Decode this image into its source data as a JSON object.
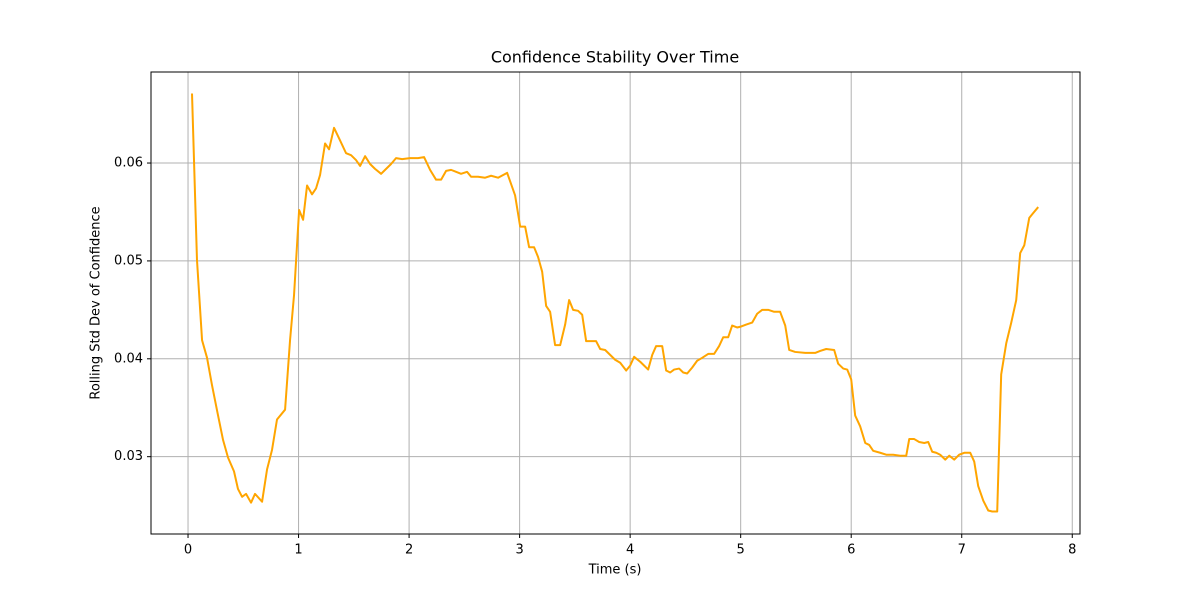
{
  "chart_data": {
    "type": "line",
    "title": "Confidence Stability Over Time",
    "xlabel": "Time (s)",
    "ylabel": "Rolling Std Dev of Confidence",
    "color": "#ffa500",
    "grid": true,
    "xlim": [
      -0.335,
      8.07
    ],
    "ylim": [
      0.0221,
      0.0693
    ],
    "xticks": [
      0,
      1,
      2,
      3,
      4,
      5,
      6,
      7,
      8
    ],
    "yticks": [
      0.03,
      0.04,
      0.05,
      0.06
    ],
    "x": [
      0.036,
      0.081,
      0.127,
      0.172,
      0.217,
      0.27,
      0.317,
      0.362,
      0.416,
      0.452,
      0.489,
      0.525,
      0.57,
      0.606,
      0.67,
      0.715,
      0.76,
      0.805,
      0.878,
      0.923,
      0.959,
      1.005,
      1.041,
      1.077,
      1.122,
      1.158,
      1.195,
      1.24,
      1.276,
      1.321,
      1.376,
      1.43,
      1.475,
      1.52,
      1.557,
      1.602,
      1.647,
      1.692,
      1.747,
      1.792,
      1.837,
      1.882,
      1.937,
      2.009,
      2.081,
      2.136,
      2.19,
      2.244,
      2.29,
      2.335,
      2.38,
      2.425,
      2.47,
      2.525,
      2.561,
      2.624,
      2.688,
      2.742,
      2.805,
      2.887,
      2.959,
      3.005,
      3.05,
      3.086,
      3.131,
      3.167,
      3.204,
      3.24,
      3.276,
      3.321,
      3.367,
      3.412,
      3.448,
      3.484,
      3.529,
      3.566,
      3.602,
      3.647,
      3.692,
      3.729,
      3.774,
      3.819,
      3.864,
      3.91,
      3.964,
      4.0,
      4.036,
      4.091,
      4.127,
      4.163,
      4.2,
      4.235,
      4.29,
      4.326,
      4.362,
      4.398,
      4.443,
      4.48,
      4.516,
      4.561,
      4.606,
      4.652,
      4.706,
      4.76,
      4.805,
      4.842,
      4.887,
      4.923,
      4.968,
      5.005,
      5.05,
      5.104,
      5.149,
      5.195,
      5.249,
      5.303,
      5.357,
      5.403,
      5.439,
      5.493,
      5.584,
      5.674,
      5.719,
      5.774,
      5.846,
      5.882,
      5.928,
      5.964,
      6.0,
      6.036,
      6.081,
      6.127,
      6.163,
      6.199,
      6.262,
      6.317,
      6.38,
      6.443,
      6.498,
      6.525,
      6.57,
      6.615,
      6.661,
      6.697,
      6.733,
      6.769,
      6.805,
      6.851,
      6.887,
      6.932,
      6.977,
      7.023,
      7.077,
      7.113,
      7.149,
      7.195,
      7.24,
      7.276,
      7.321,
      7.357,
      7.403,
      7.448,
      7.493,
      7.529,
      7.566,
      7.611,
      7.647,
      7.692
    ],
    "values": [
      0.0671,
      0.0501,
      0.0419,
      0.0401,
      0.0373,
      0.0343,
      0.0317,
      0.0299,
      0.0285,
      0.0267,
      0.0259,
      0.0262,
      0.0253,
      0.0262,
      0.0254,
      0.0287,
      0.0307,
      0.0338,
      0.0348,
      0.0419,
      0.0465,
      0.0552,
      0.0542,
      0.0577,
      0.0568,
      0.0574,
      0.0588,
      0.062,
      0.0614,
      0.0636,
      0.0623,
      0.061,
      0.0608,
      0.0603,
      0.0597,
      0.0607,
      0.0599,
      0.0594,
      0.0589,
      0.0594,
      0.0599,
      0.0605,
      0.0604,
      0.0605,
      0.0605,
      0.0606,
      0.0593,
      0.0583,
      0.0583,
      0.0592,
      0.0593,
      0.0591,
      0.0589,
      0.0591,
      0.0586,
      0.0586,
      0.0585,
      0.0587,
      0.0585,
      0.059,
      0.0567,
      0.0535,
      0.0535,
      0.0514,
      0.0514,
      0.0504,
      0.0489,
      0.0454,
      0.0448,
      0.0414,
      0.0414,
      0.0435,
      0.046,
      0.045,
      0.0449,
      0.0445,
      0.0418,
      0.0418,
      0.0418,
      0.041,
      0.0409,
      0.0404,
      0.0399,
      0.0396,
      0.0388,
      0.0393,
      0.0402,
      0.0397,
      0.0393,
      0.0389,
      0.0404,
      0.0413,
      0.0413,
      0.0388,
      0.0386,
      0.0389,
      0.039,
      0.0386,
      0.0385,
      0.0391,
      0.0398,
      0.0401,
      0.0405,
      0.0405,
      0.0413,
      0.0422,
      0.0422,
      0.0434,
      0.0432,
      0.0433,
      0.0435,
      0.0437,
      0.0446,
      0.045,
      0.045,
      0.0448,
      0.0448,
      0.0434,
      0.0409,
      0.0407,
      0.0406,
      0.0406,
      0.0408,
      0.041,
      0.0409,
      0.0395,
      0.039,
      0.0389,
      0.0379,
      0.0342,
      0.0331,
      0.0314,
      0.0312,
      0.0306,
      0.0304,
      0.0302,
      0.0302,
      0.0301,
      0.0301,
      0.0318,
      0.0318,
      0.0315,
      0.0314,
      0.0315,
      0.0305,
      0.0304,
      0.0302,
      0.0297,
      0.0301,
      0.0297,
      0.0302,
      0.0304,
      0.0304,
      0.0295,
      0.027,
      0.0255,
      0.0245,
      0.0244,
      0.0244,
      0.0384,
      0.0416,
      0.0437,
      0.046,
      0.0508,
      0.0516,
      0.0544,
      0.0549,
      0.0555
    ]
  }
}
